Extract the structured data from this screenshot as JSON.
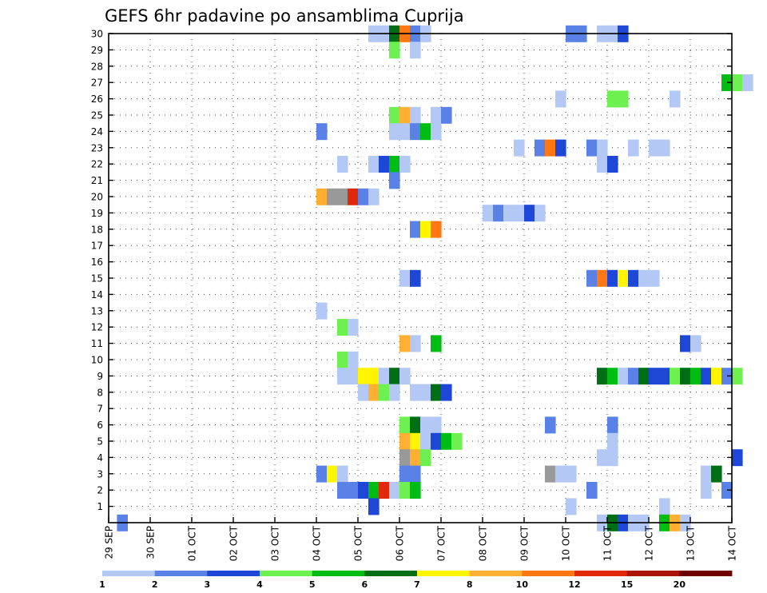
{
  "chart_data": {
    "type": "heatmap",
    "title": "GEFS 6hr padavine po ansamblima Cuprija",
    "x_tick_labels": [
      "29 SEP",
      "30 SEP",
      "01 OCT",
      "02 OCT",
      "03 OCT",
      "04 OCT",
      "05 OCT",
      "06 OCT",
      "07 OCT",
      "08 OCT",
      "09 OCT",
      "10 OCT",
      "11 OCT",
      "12 OCT",
      "13 OCT",
      "14 OCT"
    ],
    "x_range_days": [
      0,
      15
    ],
    "steps_per_day": 4,
    "y_tick_labels": [
      "1",
      "2",
      "3",
      "4",
      "5",
      "6",
      "7",
      "8",
      "9",
      "10",
      "11",
      "12",
      "13",
      "14",
      "15",
      "16",
      "17",
      "18",
      "19",
      "20",
      "21",
      "22",
      "23",
      "24",
      "25",
      "26",
      "27",
      "28",
      "29",
      "30"
    ],
    "y_range": [
      0,
      30
    ],
    "grid": true,
    "legend": {
      "position": "bottom",
      "labels": [
        "1",
        "2",
        "3",
        "4",
        "5",
        "6",
        "7",
        "8",
        "10",
        "12",
        "15",
        "20"
      ],
      "colors": [
        "#b4c8f5",
        "#5a82e6",
        "#1e46d7",
        "#6ef050",
        "#00bd14",
        "#006e14",
        "#fff500",
        "#ffaf32",
        "#ff7814",
        "#e1280a",
        "#aa1400",
        "#6e0000"
      ]
    },
    "cells": [
      [
        0,
        0.2,
        "L2"
      ],
      [
        30,
        6.25,
        "L1"
      ],
      [
        30,
        6.5,
        "L1"
      ],
      [
        30,
        6.75,
        "L6"
      ],
      [
        30,
        7.0,
        "L10"
      ],
      [
        30,
        7.25,
        "L2"
      ],
      [
        30,
        7.5,
        "L1"
      ],
      [
        30,
        11.0,
        "L2"
      ],
      [
        30,
        11.25,
        "L2"
      ],
      [
        30,
        11.75,
        "L1"
      ],
      [
        30,
        12.0,
        "L1"
      ],
      [
        30,
        12.25,
        "L3"
      ],
      [
        29,
        6.75,
        "L4"
      ],
      [
        29,
        7.25,
        "L1"
      ],
      [
        27,
        14.75,
        "L5"
      ],
      [
        27,
        15.0,
        "L4"
      ],
      [
        27,
        15.25,
        "L1"
      ],
      [
        26,
        10.75,
        "L1"
      ],
      [
        26,
        12.0,
        "L4"
      ],
      [
        26,
        12.25,
        "L4"
      ],
      [
        26,
        13.5,
        "L1"
      ],
      [
        25,
        6.75,
        "L4"
      ],
      [
        25,
        7.0,
        "L8"
      ],
      [
        25,
        7.25,
        "L1"
      ],
      [
        25,
        7.75,
        "L1"
      ],
      [
        25,
        8.0,
        "L2"
      ],
      [
        24,
        5.0,
        "L2"
      ],
      [
        24,
        6.75,
        "L1"
      ],
      [
        24,
        7.0,
        "L1"
      ],
      [
        24,
        7.25,
        "L2"
      ],
      [
        24,
        7.5,
        "L5"
      ],
      [
        24,
        7.75,
        "L1"
      ],
      [
        23,
        9.75,
        "L1"
      ],
      [
        23,
        10.25,
        "L2"
      ],
      [
        23,
        10.5,
        "L10"
      ],
      [
        23,
        10.75,
        "L3"
      ],
      [
        23,
        11.5,
        "L2"
      ],
      [
        23,
        11.75,
        "L1"
      ],
      [
        23,
        12.5,
        "L1"
      ],
      [
        23,
        13.0,
        "L1"
      ],
      [
        23,
        13.25,
        "L1"
      ],
      [
        22,
        5.5,
        "L1"
      ],
      [
        22,
        6.25,
        "L1"
      ],
      [
        22,
        6.5,
        "L3"
      ],
      [
        22,
        6.75,
        "L5"
      ],
      [
        22,
        7.0,
        "L1"
      ],
      [
        22,
        11.75,
        "L1"
      ],
      [
        22,
        12.0,
        "L3"
      ],
      [
        21,
        6.75,
        "L2"
      ],
      [
        20,
        5.0,
        "L8"
      ],
      [
        20,
        5.25,
        "L9"
      ],
      [
        20,
        5.5,
        "L9"
      ],
      [
        20,
        5.75,
        "L12"
      ],
      [
        20,
        6.0,
        "L2"
      ],
      [
        20,
        6.25,
        "L1"
      ],
      [
        19,
        9.0,
        "L1"
      ],
      [
        19,
        9.25,
        "L2"
      ],
      [
        19,
        9.5,
        "L1"
      ],
      [
        19,
        9.75,
        "L1"
      ],
      [
        19,
        10.0,
        "L3"
      ],
      [
        19,
        10.25,
        "L1"
      ],
      [
        18,
        7.25,
        "L2"
      ],
      [
        18,
        7.5,
        "L7"
      ],
      [
        18,
        7.75,
        "L10"
      ],
      [
        15,
        7.0,
        "L1"
      ],
      [
        15,
        7.25,
        "L3"
      ],
      [
        15,
        11.5,
        "L2"
      ],
      [
        15,
        11.75,
        "L10"
      ],
      [
        15,
        12.0,
        "L3"
      ],
      [
        15,
        12.25,
        "L7"
      ],
      [
        15,
        12.5,
        "L3"
      ],
      [
        15,
        12.75,
        "L1"
      ],
      [
        15,
        13.0,
        "L1"
      ],
      [
        13,
        5.0,
        "L1"
      ],
      [
        12,
        5.5,
        "L4"
      ],
      [
        12,
        5.75,
        "L1"
      ],
      [
        11,
        7.0,
        "L8"
      ],
      [
        11,
        7.25,
        "L1"
      ],
      [
        11,
        7.75,
        "L5"
      ],
      [
        11,
        13.75,
        "L3"
      ],
      [
        11,
        14.0,
        "L1"
      ],
      [
        10,
        5.5,
        "L4"
      ],
      [
        10,
        5.75,
        "L1"
      ],
      [
        9,
        5.5,
        "L1"
      ],
      [
        9,
        5.75,
        "L1"
      ],
      [
        9,
        6.0,
        "L7"
      ],
      [
        9,
        6.25,
        "L7"
      ],
      [
        9,
        6.5,
        "L1"
      ],
      [
        9,
        6.75,
        "L6"
      ],
      [
        9,
        7.0,
        "L1"
      ],
      [
        9,
        11.75,
        "L6"
      ],
      [
        9,
        12.0,
        "L5"
      ],
      [
        9,
        12.25,
        "L1"
      ],
      [
        9,
        12.5,
        "L2"
      ],
      [
        9,
        12.75,
        "L6"
      ],
      [
        9,
        13.0,
        "L3"
      ],
      [
        9,
        13.25,
        "L3"
      ],
      [
        9,
        13.5,
        "L4"
      ],
      [
        9,
        13.75,
        "L6"
      ],
      [
        9,
        14.0,
        "L5"
      ],
      [
        9,
        14.25,
        "L3"
      ],
      [
        9,
        14.5,
        "L7"
      ],
      [
        9,
        14.75,
        "L2"
      ],
      [
        9,
        15.0,
        "L4"
      ],
      [
        8,
        6.0,
        "L1"
      ],
      [
        8,
        6.25,
        "L8"
      ],
      [
        8,
        6.5,
        "L4"
      ],
      [
        8,
        6.75,
        "L1"
      ],
      [
        8,
        7.25,
        "L1"
      ],
      [
        8,
        7.5,
        "L1"
      ],
      [
        8,
        7.75,
        "L6"
      ],
      [
        8,
        8.0,
        "L3"
      ],
      [
        6,
        7.0,
        "L4"
      ],
      [
        6,
        7.25,
        "L6"
      ],
      [
        6,
        7.5,
        "L1"
      ],
      [
        6,
        7.75,
        "L1"
      ],
      [
        6,
        10.5,
        "L2"
      ],
      [
        6,
        12.0,
        "L2"
      ],
      [
        5,
        7.0,
        "L8"
      ],
      [
        5,
        7.25,
        "L7"
      ],
      [
        5,
        7.5,
        "L1"
      ],
      [
        5,
        7.75,
        "L3"
      ],
      [
        5,
        8.0,
        "L5"
      ],
      [
        5,
        8.25,
        "L4"
      ],
      [
        5,
        12.0,
        "L1"
      ],
      [
        4,
        7.0,
        "L9"
      ],
      [
        4,
        7.25,
        "L8"
      ],
      [
        4,
        7.5,
        "L4"
      ],
      [
        4,
        11.75,
        "L1"
      ],
      [
        4,
        12.0,
        "L1"
      ],
      [
        4,
        15.0,
        "L3"
      ],
      [
        3,
        5.0,
        "L2"
      ],
      [
        3,
        5.25,
        "L7"
      ],
      [
        3,
        5.5,
        "L1"
      ],
      [
        3,
        7.0,
        "L2"
      ],
      [
        3,
        7.25,
        "L2"
      ],
      [
        3,
        10.5,
        "L9"
      ],
      [
        3,
        10.75,
        "L1"
      ],
      [
        3,
        11.0,
        "L1"
      ],
      [
        3,
        14.25,
        "L1"
      ],
      [
        3,
        14.5,
        "L6"
      ],
      [
        2,
        5.5,
        "L2"
      ],
      [
        2,
        5.75,
        "L2"
      ],
      [
        2,
        6.0,
        "L3"
      ],
      [
        2,
        6.25,
        "L5"
      ],
      [
        2,
        6.5,
        "L12"
      ],
      [
        2,
        6.75,
        "L1"
      ],
      [
        2,
        7.0,
        "L4"
      ],
      [
        2,
        7.25,
        "L5"
      ],
      [
        2,
        11.5,
        "L2"
      ],
      [
        2,
        14.25,
        "L1"
      ],
      [
        2,
        14.75,
        "L2"
      ],
      [
        1,
        6.25,
        "L3"
      ],
      [
        1,
        11.0,
        "L1"
      ],
      [
        1,
        13.25,
        "L1"
      ],
      [
        0,
        11.75,
        "L1"
      ],
      [
        0,
        12.0,
        "L6"
      ],
      [
        0,
        12.25,
        "L3"
      ],
      [
        0,
        12.5,
        "L1"
      ],
      [
        0,
        12.75,
        "L1"
      ],
      [
        0,
        13.25,
        "L5"
      ],
      [
        0,
        13.5,
        "L8"
      ],
      [
        0,
        13.75,
        "L1"
      ]
    ]
  }
}
